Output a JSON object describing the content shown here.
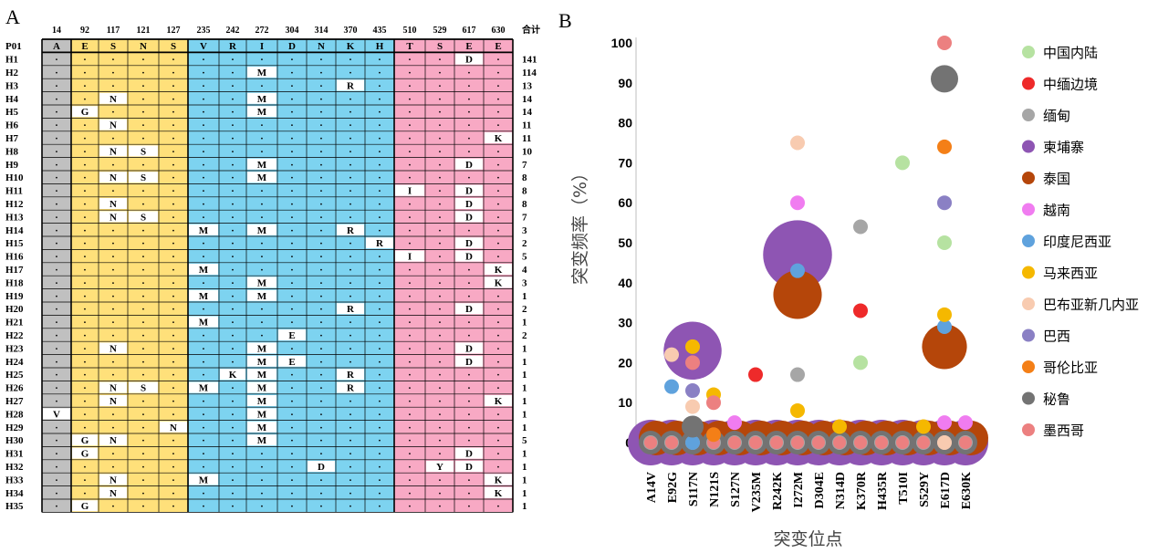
{
  "panels": {
    "a_label": "A",
    "b_label": "B"
  },
  "haplotype_table": {
    "positions": [
      "14",
      "92",
      "117",
      "121",
      "127",
      "235",
      "242",
      "272",
      "304",
      "314",
      "370",
      "435",
      "510",
      "529",
      "617",
      "630"
    ],
    "total_header": "合计",
    "ref_label": "P01",
    "ref_residues": [
      "A",
      "E",
      "S",
      "N",
      "S",
      "V",
      "R",
      "I",
      "D",
      "N",
      "K",
      "H",
      "T",
      "S",
      "E",
      "E"
    ],
    "block_colors": [
      "#c0c0c0",
      "#ffe07a",
      "#ffe07a",
      "#ffe07a",
      "#ffe07a",
      "#7dd3f0",
      "#7dd3f0",
      "#7dd3f0",
      "#7dd3f0",
      "#7dd3f0",
      "#7dd3f0",
      "#7dd3f0",
      "#f8a9c4",
      "#f8a9c4",
      "#f8a9c4",
      "#f8a9c4"
    ],
    "dot": "·",
    "rows": [
      {
        "label": "H1",
        "total": "141",
        "mut": {
          "14": "D"
        }
      },
      {
        "label": "H2",
        "total": "114",
        "mut": {
          "7": "M"
        }
      },
      {
        "label": "H3",
        "total": "13",
        "mut": {
          "10": "R"
        }
      },
      {
        "label": "H4",
        "total": "14",
        "mut": {
          "2": "N",
          "7": "M"
        }
      },
      {
        "label": "H5",
        "total": "14",
        "mut": {
          "1": "G",
          "7": "M"
        }
      },
      {
        "label": "H6",
        "total": "11",
        "mut": {
          "2": "N"
        }
      },
      {
        "label": "H7",
        "total": "11",
        "mut": {
          "15": "K"
        }
      },
      {
        "label": "H8",
        "total": "10",
        "mut": {
          "2": "N",
          "3": "S"
        }
      },
      {
        "label": "H9",
        "total": "7",
        "mut": {
          "7": "M",
          "14": "D"
        }
      },
      {
        "label": "H10",
        "total": "8",
        "mut": {
          "2": "N",
          "3": "S",
          "7": "M"
        }
      },
      {
        "label": "H11",
        "total": "8",
        "mut": {
          "12": "I",
          "14": "D"
        }
      },
      {
        "label": "H12",
        "total": "8",
        "mut": {
          "2": "N",
          "14": "D"
        }
      },
      {
        "label": "H13",
        "total": "7",
        "mut": {
          "2": "N",
          "3": "S",
          "14": "D"
        }
      },
      {
        "label": "H14",
        "total": "3",
        "mut": {
          "5": "M",
          "7": "M",
          "10": "R"
        }
      },
      {
        "label": "H15",
        "total": "2",
        "mut": {
          "11": "R",
          "14": "D"
        }
      },
      {
        "label": "H16",
        "total": "5",
        "mut": {
          "12": "I",
          "14": "D"
        }
      },
      {
        "label": "H17",
        "total": "4",
        "mut": {
          "5": "M",
          "15": "K"
        }
      },
      {
        "label": "H18",
        "total": "3",
        "mut": {
          "7": "M",
          "15": "K"
        }
      },
      {
        "label": "H19",
        "total": "1",
        "mut": {
          "5": "M",
          "7": "M"
        }
      },
      {
        "label": "H20",
        "total": "2",
        "mut": {
          "10": "R",
          "14": "D"
        }
      },
      {
        "label": "H21",
        "total": "1",
        "mut": {
          "5": "M"
        }
      },
      {
        "label": "H22",
        "total": "2",
        "mut": {
          "8": "E"
        }
      },
      {
        "label": "H23",
        "total": "1",
        "mut": {
          "2": "N",
          "7": "M",
          "14": "D"
        }
      },
      {
        "label": "H24",
        "total": "1",
        "mut": {
          "7": "M",
          "8": "E",
          "14": "D"
        }
      },
      {
        "label": "H25",
        "total": "1",
        "mut": {
          "6": "K",
          "7": "M",
          "10": "R"
        }
      },
      {
        "label": "H26",
        "total": "1",
        "mut": {
          "2": "N",
          "3": "S",
          "5": "M",
          "7": "M",
          "10": "R"
        }
      },
      {
        "label": "H27",
        "total": "1",
        "mut": {
          "2": "N",
          "7": "M",
          "15": "K"
        }
      },
      {
        "label": "H28",
        "total": "1",
        "mut": {
          "0": "V",
          "7": "M"
        }
      },
      {
        "label": "H29",
        "total": "1",
        "mut": {
          "4": "N",
          "7": "M"
        }
      },
      {
        "label": "H30",
        "total": "5",
        "mut": {
          "1": "G",
          "2": "N",
          "7": "M"
        }
      },
      {
        "label": "H31",
        "total": "1",
        "mut": {
          "1": "G",
          "14": "D"
        }
      },
      {
        "label": "H32",
        "total": "1",
        "mut": {
          "9": "D",
          "13": "Y",
          "14": "D"
        }
      },
      {
        "label": "H33",
        "total": "1",
        "mut": {
          "2": "N",
          "5": "M",
          "15": "K"
        }
      },
      {
        "label": "H34",
        "total": "1",
        "mut": {
          "2": "N",
          "15": "K"
        }
      },
      {
        "label": "H35",
        "total": "1",
        "mut": {
          "1": "G"
        }
      }
    ]
  },
  "chart_data": {
    "type": "scatter",
    "title": "",
    "xlabel": "突变位点",
    "ylabel": "突变频率（%）",
    "ylim": [
      0,
      100
    ],
    "yticks": [
      0,
      10,
      20,
      30,
      40,
      50,
      60,
      70,
      80,
      90,
      100
    ],
    "grid": false,
    "legend_position": "right",
    "categories": [
      "A14V",
      "E92G",
      "S117N",
      "N121S",
      "S127N",
      "V235M",
      "R242K",
      "I272M",
      "D304E",
      "N314D",
      "K370R",
      "H435R",
      "T510I",
      "S529Y",
      "E617D",
      "E630K"
    ],
    "series": [
      {
        "name": "中国内陆",
        "color": "#b6e2a1",
        "values": [
          null,
          null,
          null,
          null,
          null,
          null,
          null,
          null,
          null,
          null,
          20,
          null,
          70,
          null,
          50,
          null
        ]
      },
      {
        "name": "中缅边境",
        "color": "#ee2a2a",
        "values": [
          null,
          null,
          null,
          null,
          null,
          17,
          null,
          null,
          null,
          null,
          33,
          null,
          null,
          null,
          null,
          null
        ]
      },
      {
        "name": "缅甸",
        "color": "#a6a6a6",
        "values": [
          null,
          null,
          null,
          null,
          null,
          null,
          null,
          17,
          null,
          null,
          54,
          null,
          null,
          null,
          null,
          null
        ]
      },
      {
        "name": "柬埔寨",
        "color": "#8e55b3",
        "values": [
          null,
          null,
          23,
          null,
          null,
          null,
          null,
          47,
          null,
          null,
          null,
          null,
          null,
          null,
          null,
          null
        ]
      },
      {
        "name": "泰国",
        "color": "#b5460a",
        "values": [
          null,
          null,
          null,
          null,
          null,
          null,
          null,
          37,
          null,
          null,
          null,
          null,
          null,
          null,
          24,
          null
        ]
      },
      {
        "name": "越南",
        "color": "#f07cf0",
        "values": [
          null,
          null,
          null,
          null,
          5,
          null,
          null,
          60,
          null,
          null,
          null,
          null,
          null,
          null,
          5,
          5
        ]
      },
      {
        "name": "印度尼西亚",
        "color": "#5fa2dd",
        "values": [
          null,
          14,
          0,
          null,
          null,
          null,
          null,
          43,
          null,
          null,
          null,
          null,
          null,
          null,
          29,
          null
        ]
      },
      {
        "name": "马来西亚",
        "color": "#f5b800",
        "values": [
          null,
          null,
          24,
          12,
          null,
          null,
          null,
          8,
          null,
          4,
          null,
          null,
          null,
          4,
          32,
          null
        ]
      },
      {
        "name": "巴布亚新几内亚",
        "color": "#f8cbb0",
        "values": [
          null,
          22,
          9,
          null,
          null,
          null,
          null,
          75,
          null,
          null,
          null,
          null,
          null,
          null,
          0,
          null
        ]
      },
      {
        "name": "巴西",
        "color": "#8a80c4",
        "values": [
          null,
          null,
          13,
          null,
          null,
          null,
          null,
          null,
          null,
          null,
          null,
          null,
          null,
          null,
          60,
          null
        ]
      },
      {
        "name": "哥伦比亚",
        "color": "#f47f17",
        "values": [
          null,
          null,
          null,
          2,
          null,
          null,
          null,
          null,
          null,
          null,
          null,
          null,
          null,
          null,
          74,
          null
        ]
      },
      {
        "name": "秘鲁",
        "color": "#737373",
        "values": [
          null,
          null,
          4,
          null,
          null,
          null,
          null,
          null,
          null,
          null,
          null,
          null,
          null,
          null,
          91,
          null
        ]
      },
      {
        "name": "墨西哥",
        "color": "#ec8080",
        "values": [
          null,
          null,
          20,
          10,
          null,
          null,
          null,
          null,
          null,
          null,
          null,
          null,
          null,
          null,
          100,
          null
        ]
      }
    ]
  }
}
